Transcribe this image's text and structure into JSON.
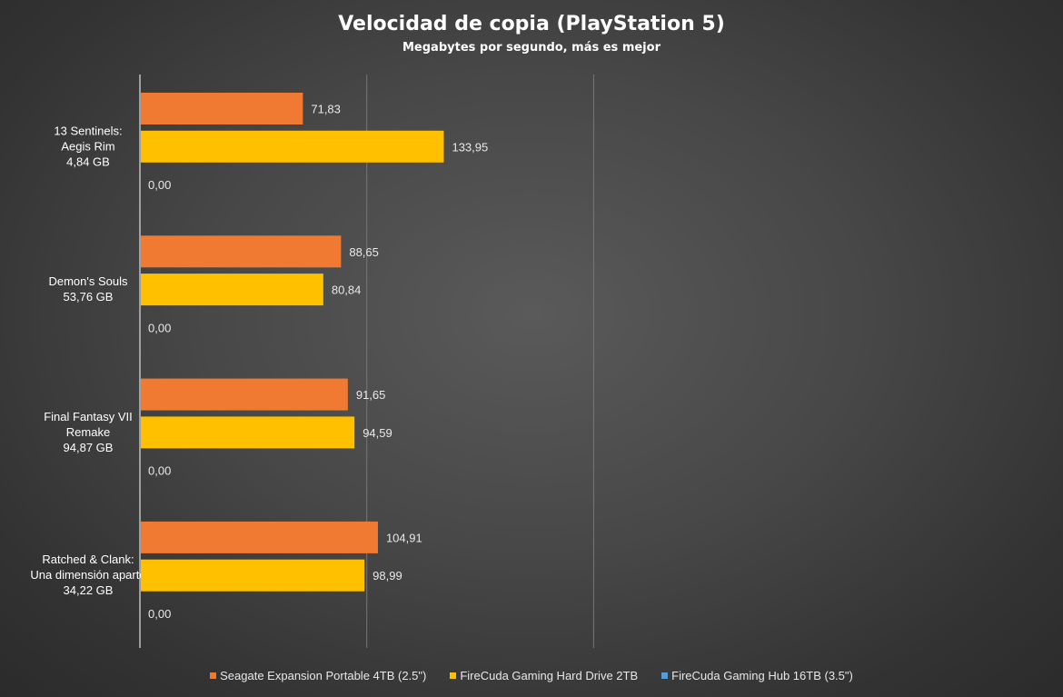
{
  "chart_data": {
    "type": "bar",
    "orientation": "horizontal",
    "title": "Velocidad de copia (PlayStation 5)",
    "subtitle": "Megabytes por segundo, más es mejor",
    "categories": [
      [
        "13 Sentinels:",
        "Aegis Rim",
        "4,84 GB"
      ],
      [
        "Demon's Souls",
        "53,76 GB"
      ],
      [
        "Final Fantasy VII",
        "Remake",
        "94,87 GB"
      ],
      [
        "Ratched & Clank:",
        "Una dimensión aparte",
        "34,22 GB"
      ]
    ],
    "series": [
      {
        "name": "Seagate Expansion Portable 4TB (2.5\")",
        "color": "#f07a32",
        "values": [
          71.83,
          88.65,
          91.65,
          104.91
        ],
        "labels": [
          "71,83",
          "88,65",
          "91,65",
          "104,91"
        ]
      },
      {
        "name": "FireCuda Gaming Hard Drive 2TB",
        "color": "#ffc000",
        "values": [
          133.95,
          80.84,
          94.59,
          98.99
        ],
        "labels": [
          "133,95",
          "80,84",
          "94,59",
          "98,99"
        ]
      },
      {
        "name": "FireCuda Gaming Hub 16TB (3.5\")",
        "color": "#5b9bd5",
        "values": [
          0,
          0,
          0,
          0
        ],
        "labels": [
          "0,00",
          "0,00",
          "0,00",
          "0,00"
        ]
      }
    ],
    "xlim": [
      0,
      200
    ],
    "gridlines": true,
    "legend_position": "bottom"
  }
}
